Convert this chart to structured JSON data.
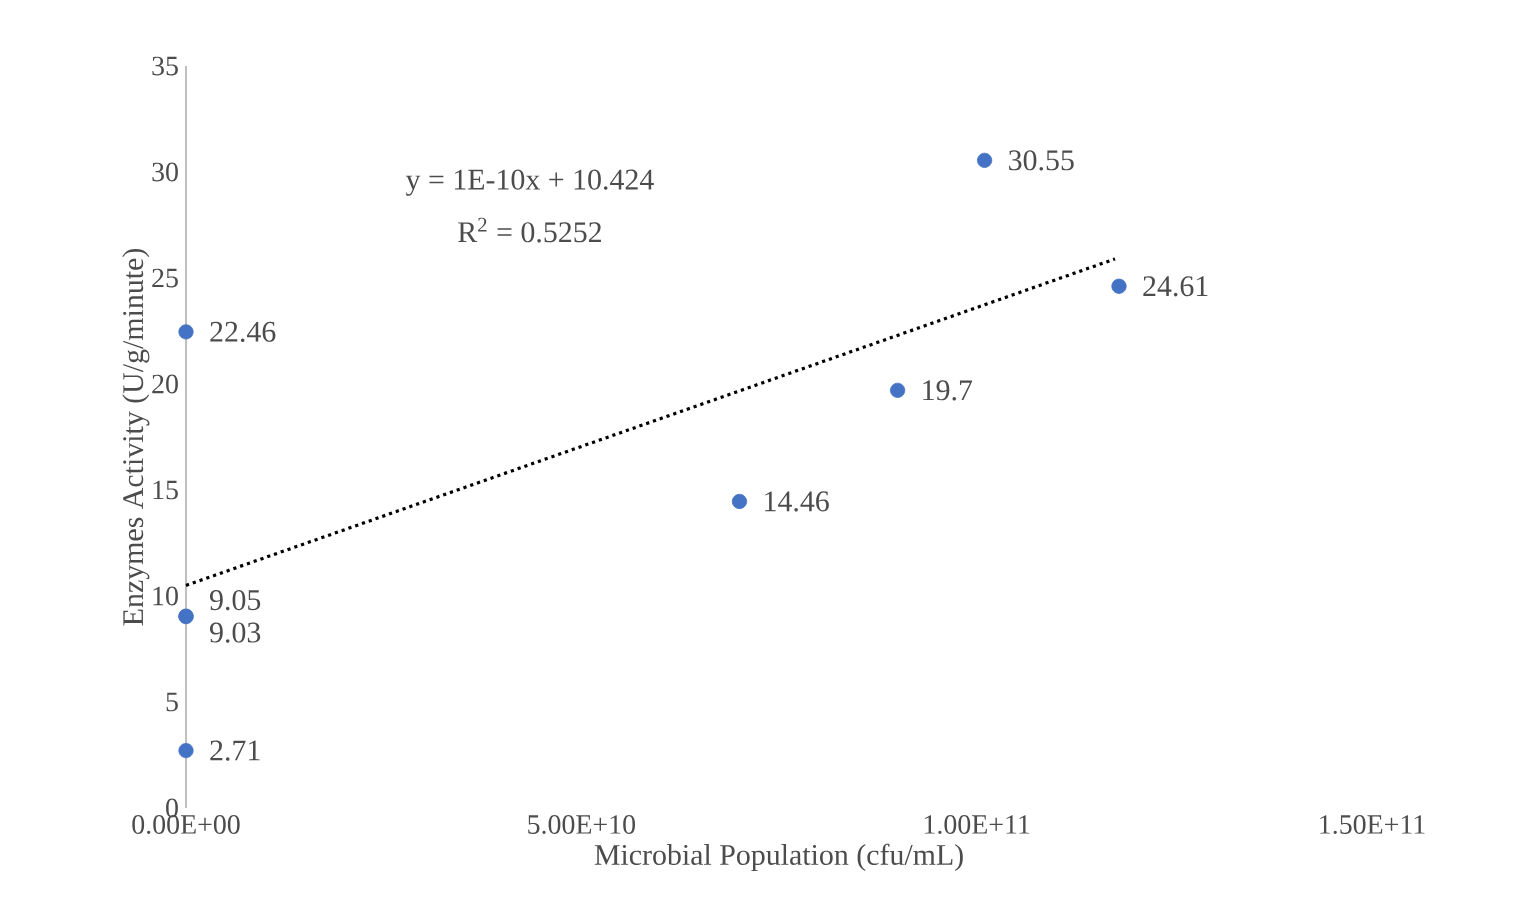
{
  "chart_data": {
    "type": "scatter",
    "xlabel": "Microbial Population (cfu/mL)",
    "ylabel": "Enzymes Activity (U/g/minute)",
    "x": [
      0,
      0,
      0,
      0,
      70000000000,
      90000000000,
      101000000000,
      118000000000
    ],
    "series": [
      {
        "color": "#4472c4",
        "marker": "circle",
        "values": [
          22.46,
          9.05,
          9.03,
          2.71,
          14.46,
          19.7,
          30.55,
          24.61
        ],
        "value_labels": [
          "22.46",
          "9.05",
          "9.03",
          "2.71",
          "14.46",
          "19.7",
          "30.55",
          "24.61"
        ]
      },
      {
        "type": "line",
        "color": "#000000",
        "marker": "none",
        "line_style": "dotted",
        "x": [
          0,
          117500000000
        ],
        "values": [
          10.5,
          25.9
        ]
      }
    ],
    "annotations": [
      "y = 1E-10x + 10.424",
      "R$^{2}$ = 0.5252"
    ],
    "xlim": [
      0,
      150000000000
    ],
    "xticks": [
      {
        "value": 0,
        "label": "0.00E+00"
      },
      {
        "value": 50000000000,
        "label": "5.00E+10"
      },
      {
        "value": 100000000000,
        "label": "1.00E+11"
      },
      {
        "value": 150000000000,
        "label": "1.50E+11"
      }
    ],
    "ylim": [
      0,
      35
    ],
    "yticks": [
      0,
      5,
      10,
      15,
      20,
      25,
      30,
      35
    ],
    "grid": false
  }
}
